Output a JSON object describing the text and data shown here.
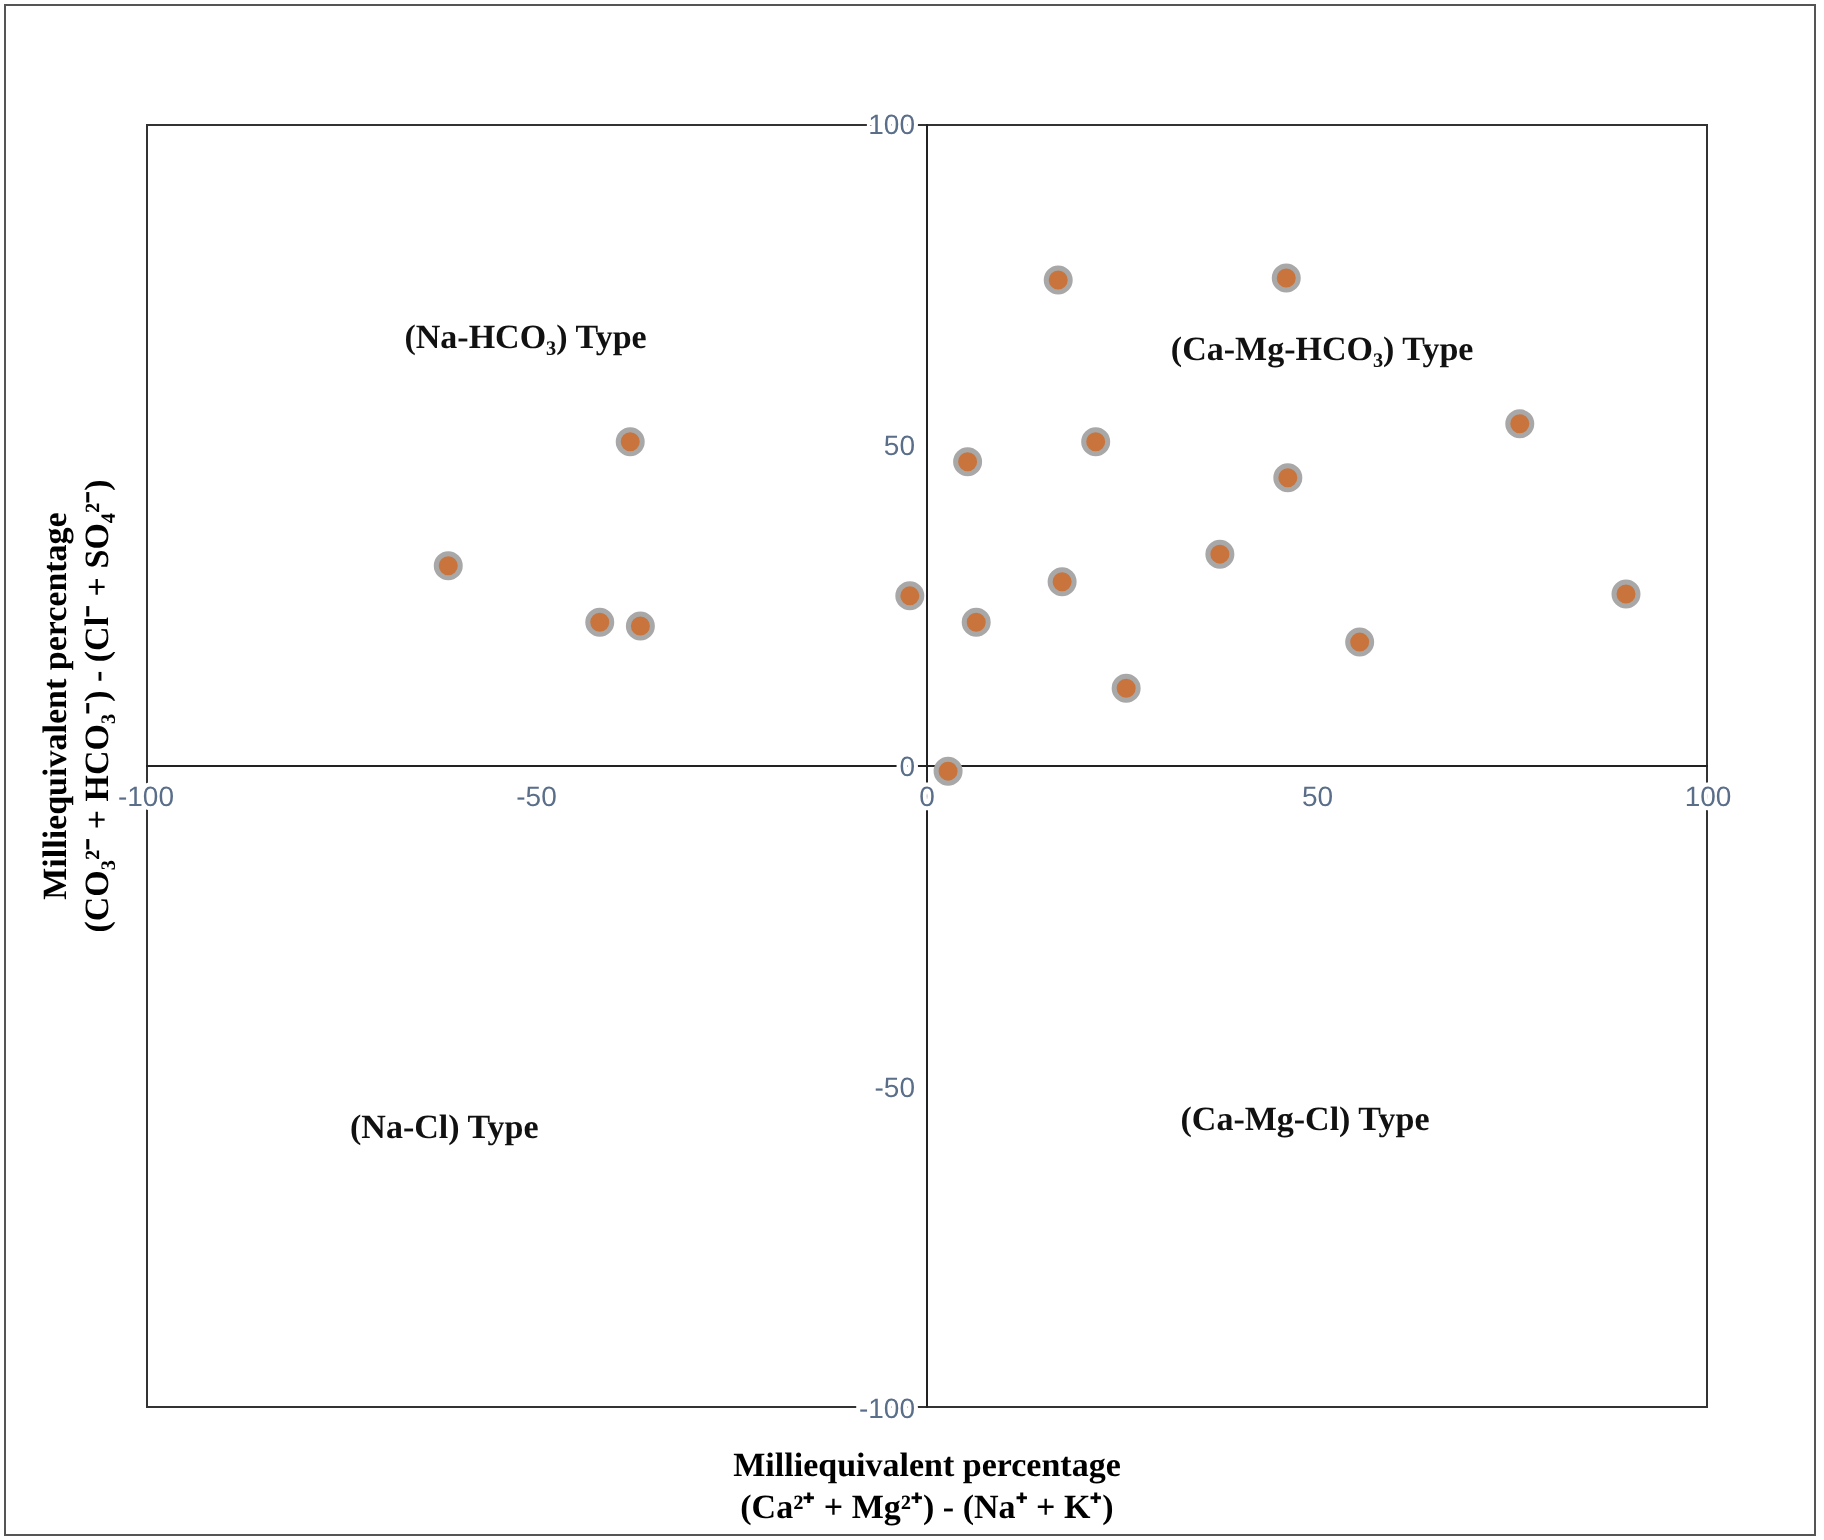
{
  "chart_data": {
    "type": "scatter",
    "xlabel": "Milliequivalent percentage\n(Ca²⁺ + Mg²⁺) - (Na⁺ + K⁺)",
    "ylabel": "Milliequivalent percentage\n(CO₃²⁻ + HCO₃⁻) - (Cl⁻ + SO₄²⁻)",
    "x": [
      -61.3,
      -38.0,
      -41.9,
      -36.7,
      -2.2,
      2.7,
      5.2,
      6.3,
      16.8,
      17.3,
      21.6,
      25.5,
      37.5,
      46.0,
      46.2,
      55.4,
      75.9,
      89.5
    ],
    "values": [
      31.2,
      50.5,
      22.4,
      21.8,
      26.5,
      -0.8,
      47.4,
      22.4,
      75.7,
      28.7,
      50.5,
      12.1,
      33.0,
      76.0,
      44.9,
      19.3,
      53.3,
      26.8
    ],
    "color": "#c8743c",
    "marker": "circle",
    "xlim": [
      -100,
      100
    ],
    "xticks": [
      -100,
      -50,
      0,
      50,
      100
    ],
    "ylim": [
      -100,
      100
    ],
    "yticks": [
      -100,
      -50,
      0,
      50,
      100
    ],
    "grid": false,
    "legend": false,
    "annotations": [
      "(Na-HCO₃) Type",
      "(Ca-Mg-HCO₃) Type",
      "(Na-Cl) Type",
      "(Ca-Mg-Cl) Type"
    ]
  }
}
